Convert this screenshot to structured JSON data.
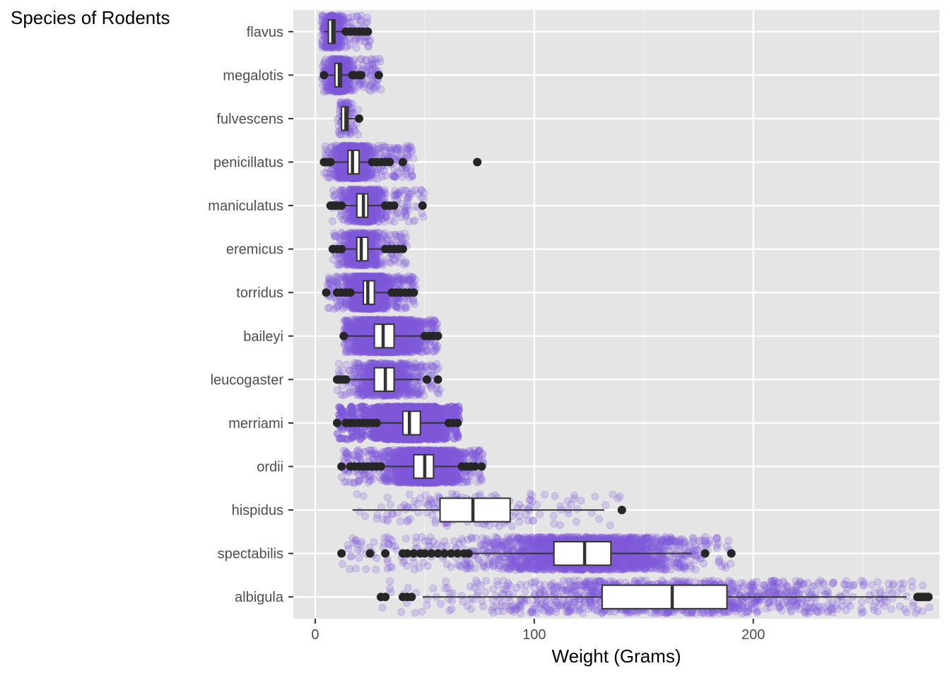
{
  "chart_data": {
    "type": "box",
    "orientation": "horizontal",
    "ylabel": "Species of Rodents",
    "xlabel": "Weight (Grams)",
    "xlim": [
      -10,
      285
    ],
    "x_ticks": [
      0,
      100,
      200
    ],
    "x_tick_labels": [
      "0",
      "100",
      "200"
    ],
    "grid": true,
    "panel_color": "#e5e5e5",
    "point_color": "#8159d9",
    "outlier_color": "#262626",
    "categories": [
      "flavus",
      "megalotis",
      "fulvescens",
      "penicillatus",
      "maniculatus",
      "eremicus",
      "torridus",
      "baileyi",
      "leucogaster",
      "merriami",
      "ordii",
      "hispidus",
      "spectabilis",
      "albigula"
    ],
    "boxes": [
      {
        "species": "flavus",
        "whisker_low": 4,
        "q1": 6,
        "median": 8,
        "q3": 9,
        "whisker_high": 13,
        "outliers": [
          14,
          16,
          18,
          20,
          22,
          24
        ],
        "jitter_range": [
          3,
          25
        ],
        "jitter_count": 500
      },
      {
        "species": "megalotis",
        "whisker_low": 4,
        "q1": 9,
        "median": 11,
        "q3": 12,
        "whisker_high": 17,
        "outliers": [
          4,
          17,
          18,
          20,
          21,
          29
        ],
        "jitter_range": [
          3,
          30
        ],
        "jitter_count": 900
      },
      {
        "species": "fulvescens",
        "whisker_low": 11,
        "q1": 12,
        "median": 14,
        "q3": 15,
        "whisker_high": 18,
        "outliers": [
          20
        ],
        "jitter_range": [
          10,
          20
        ],
        "jitter_count": 80
      },
      {
        "species": "penicillatus",
        "whisker_low": 7,
        "q1": 15,
        "median": 17,
        "q3": 20,
        "whisker_high": 27,
        "outliers": [
          4,
          5,
          6,
          7,
          26,
          28,
          30,
          32,
          34,
          40,
          74
        ],
        "jitter_range": [
          4,
          45
        ],
        "jitter_count": 1500
      },
      {
        "species": "maniculatus",
        "whisker_low": 12,
        "q1": 19,
        "median": 22,
        "q3": 24,
        "whisker_high": 31,
        "outliers": [
          7,
          8,
          9,
          10,
          12,
          32,
          34,
          36,
          49
        ],
        "jitter_range": [
          7,
          50
        ],
        "jitter_count": 900
      },
      {
        "species": "eremicus",
        "whisker_low": 13,
        "q1": 19,
        "median": 21,
        "q3": 24,
        "whisker_high": 31,
        "outliers": [
          8,
          10,
          12,
          32,
          34,
          36,
          38,
          40
        ],
        "jitter_range": [
          8,
          42
        ],
        "jitter_count": 1000
      },
      {
        "species": "torridus",
        "whisker_low": 13,
        "q1": 22,
        "median": 24,
        "q3": 27,
        "whisker_high": 34,
        "outliers": [
          5,
          10,
          12,
          14,
          16,
          35,
          37,
          39,
          41,
          43,
          45
        ],
        "jitter_range": [
          5,
          46
        ],
        "jitter_count": 2200
      },
      {
        "species": "baileyi",
        "whisker_low": 14,
        "q1": 27,
        "median": 31,
        "q3": 36,
        "whisker_high": 49,
        "outliers": [
          13,
          50,
          52,
          54,
          56
        ],
        "jitter_range": [
          13,
          56
        ],
        "jitter_count": 2800
      },
      {
        "species": "leucogaster",
        "whisker_low": 14,
        "q1": 27,
        "median": 32,
        "q3": 36,
        "whisker_high": 48,
        "outliers": [
          10,
          11,
          12,
          13,
          14,
          51,
          56
        ],
        "jitter_range": [
          10,
          57
        ],
        "jitter_count": 1000
      },
      {
        "species": "merriami",
        "whisker_low": 28,
        "q1": 40,
        "median": 43,
        "q3": 48,
        "whisker_high": 60,
        "outliers": [
          10,
          14,
          16,
          18,
          20,
          22,
          24,
          26,
          28,
          61,
          63,
          65
        ],
        "jitter_range": [
          10,
          66
        ],
        "jitter_count": 9500
      },
      {
        "species": "ordii",
        "whisker_low": 31,
        "q1": 45,
        "median": 50,
        "q3": 54,
        "whisker_high": 66,
        "outliers": [
          12,
          16,
          18,
          20,
          22,
          24,
          26,
          28,
          30,
          67,
          69,
          71,
          73,
          76
        ],
        "jitter_range": [
          12,
          77
        ],
        "jitter_count": 3000
      },
      {
        "species": "hispidus",
        "whisker_low": 17,
        "q1": 57,
        "median": 72,
        "q3": 89,
        "whisker_high": 132,
        "outliers": [
          140
        ],
        "jitter_range": [
          17,
          140
        ],
        "jitter_count": 200
      },
      {
        "species": "spectabilis",
        "whisker_low": 72,
        "q1": 109,
        "median": 123,
        "q3": 135,
        "whisker_high": 172,
        "outliers": [
          12,
          25,
          32,
          40,
          42,
          45,
          48,
          50,
          53,
          56,
          59,
          62,
          65,
          68,
          70,
          178,
          190
        ],
        "jitter_range": [
          12,
          190
        ],
        "jitter_count": 2400
      },
      {
        "species": "albigula",
        "whisker_low": 49,
        "q1": 131,
        "median": 163,
        "q3": 188,
        "whisker_high": 270,
        "outliers": [
          30,
          32,
          40,
          42,
          44,
          275,
          276,
          277,
          278,
          279,
          280
        ],
        "jitter_range": [
          30,
          281
        ],
        "jitter_count": 1200
      }
    ]
  }
}
